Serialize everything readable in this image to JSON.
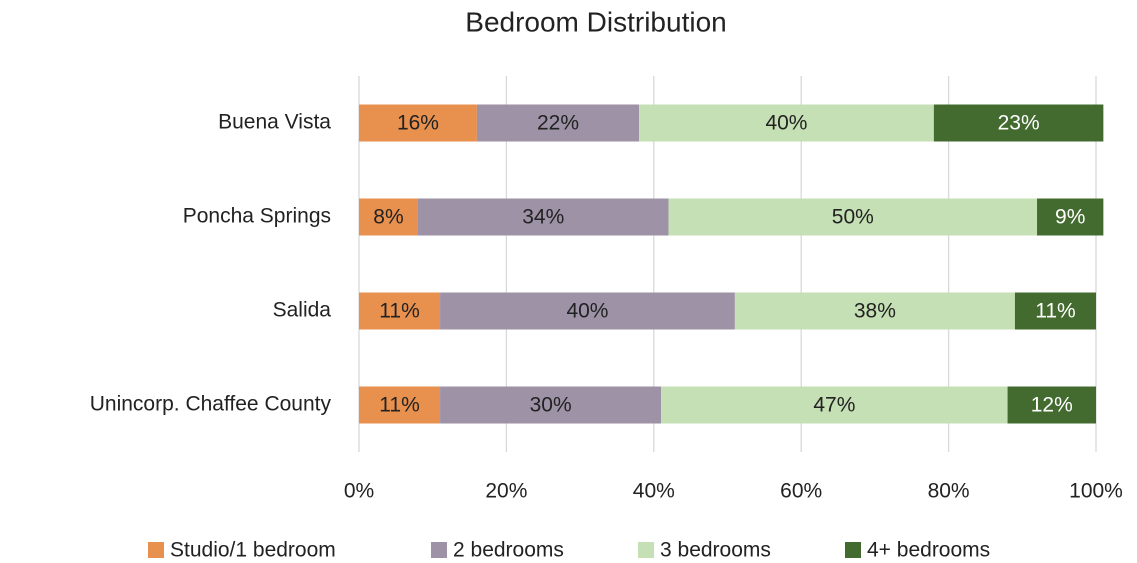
{
  "chart_data": {
    "type": "stacked_bar_horizontal",
    "title": "Bedroom Distribution",
    "categories": [
      "Buena Vista",
      "Poncha Springs",
      "Salida",
      "Unincorp. Chaffee County"
    ],
    "series": [
      {
        "name": "Studio/1 bedroom",
        "color": "#e8914f",
        "values": [
          16,
          8,
          11,
          11
        ],
        "value_labels": [
          "16%",
          "8%",
          "11%",
          "11%"
        ]
      },
      {
        "name": "2 bedrooms",
        "color": "#9d92a6",
        "values": [
          22,
          34,
          40,
          30
        ],
        "value_labels": [
          "22%",
          "34%",
          "40%",
          "30%"
        ]
      },
      {
        "name": "3 bedrooms",
        "color": "#c5e0b4",
        "values": [
          40,
          50,
          38,
          47
        ],
        "value_labels": [
          "40%",
          "50%",
          "38%",
          "47%"
        ]
      },
      {
        "name": "4+ bedrooms",
        "color": "#436b2f",
        "values": [
          23,
          9,
          11,
          12
        ],
        "value_labels": [
          "23%",
          "9%",
          "11%",
          "12%"
        ]
      }
    ],
    "xlim": [
      0,
      100
    ],
    "xticks": [
      {
        "value": 0,
        "label": "0%"
      },
      {
        "value": 20,
        "label": "20%"
      },
      {
        "value": 40,
        "label": "40%"
      },
      {
        "value": 60,
        "label": "60%"
      },
      {
        "value": 80,
        "label": "80%"
      },
      {
        "value": 100,
        "label": "100%"
      }
    ],
    "grid": true,
    "legend": "bottom"
  }
}
